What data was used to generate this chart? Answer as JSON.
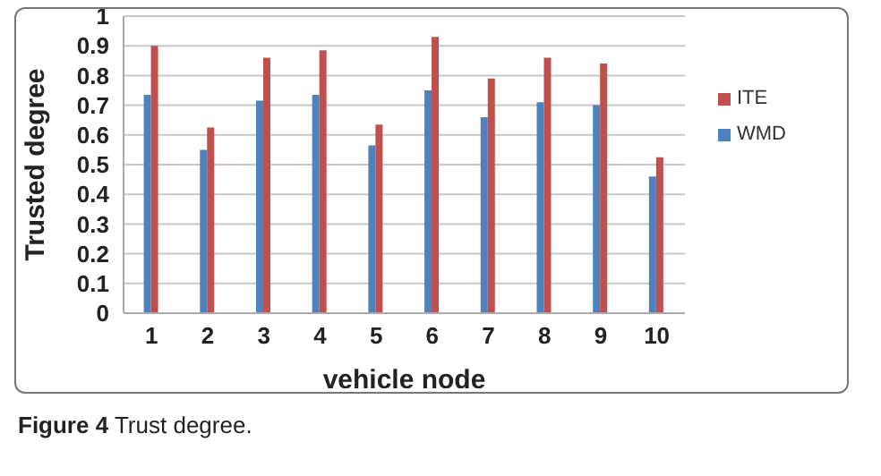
{
  "chart_data": {
    "type": "bar",
    "categories": [
      "1",
      "2",
      "3",
      "4",
      "5",
      "6",
      "7",
      "8",
      "9",
      "10"
    ],
    "series": [
      {
        "name": "WMD",
        "color": "#4f81bd",
        "values": [
          0.735,
          0.55,
          0.715,
          0.735,
          0.565,
          0.75,
          0.66,
          0.71,
          0.7,
          0.46
        ]
      },
      {
        "name": "ITE",
        "color": "#c0504d",
        "values": [
          0.9,
          0.625,
          0.86,
          0.885,
          0.635,
          0.93,
          0.79,
          0.86,
          0.84,
          0.525
        ]
      }
    ],
    "xlabel": "vehicle node",
    "ylabel": "Trusted degree",
    "ylim": [
      0,
      1
    ],
    "yticks": [
      0,
      0.1,
      0.2,
      0.3,
      0.4,
      0.5,
      0.6,
      0.7,
      0.8,
      0.9,
      1
    ],
    "grid": "y",
    "legend": "top right",
    "annotations": [
      "Figure 4 Trust degree."
    ]
  }
}
